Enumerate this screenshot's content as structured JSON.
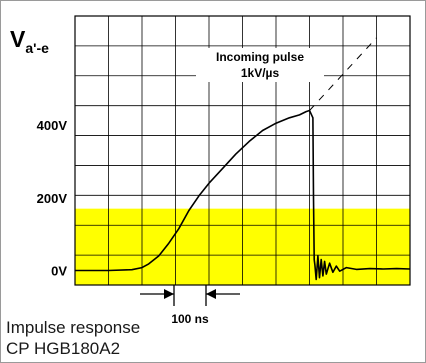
{
  "chart_data": {
    "type": "line",
    "ylabel": {
      "main": "V",
      "sub": "a'-e"
    },
    "ytick_labels": [
      "400V",
      "200V",
      "0V"
    ],
    "ytick_values": [
      400,
      200,
      0
    ],
    "ylim": [
      -40,
      700
    ],
    "xlim": [
      0,
      1
    ],
    "grid": true,
    "highlight_band": {
      "from": -40,
      "to": 170,
      "color": "#ffff00"
    },
    "annotation": {
      "line1": "Incoming pulse",
      "line2": "1kV/µs"
    },
    "scale_marker": {
      "label": "100 ns"
    },
    "series": [
      {
        "points": [
          [
            0.0,
            0
          ],
          [
            0.1,
            0
          ],
          [
            0.17,
            2
          ],
          [
            0.2,
            8
          ],
          [
            0.22,
            18
          ],
          [
            0.25,
            40
          ],
          [
            0.28,
            75
          ],
          [
            0.31,
            115
          ],
          [
            0.34,
            165
          ],
          [
            0.37,
            205
          ],
          [
            0.4,
            240
          ],
          [
            0.44,
            280
          ],
          [
            0.48,
            320
          ],
          [
            0.52,
            355
          ],
          [
            0.56,
            385
          ],
          [
            0.6,
            405
          ],
          [
            0.64,
            420
          ],
          [
            0.67,
            428
          ],
          [
            0.69,
            437
          ],
          [
            0.7,
            440
          ],
          [
            0.71,
            420
          ],
          [
            0.712,
            200
          ],
          [
            0.714,
            30
          ],
          [
            0.716,
            15
          ],
          [
            0.72,
            -25
          ],
          [
            0.725,
            40
          ],
          [
            0.73,
            -20
          ],
          [
            0.735,
            30
          ],
          [
            0.74,
            -15
          ],
          [
            0.745,
            25
          ],
          [
            0.75,
            -10
          ],
          [
            0.76,
            20
          ],
          [
            0.77,
            -5
          ],
          [
            0.78,
            12
          ],
          [
            0.79,
            -2
          ],
          [
            0.81,
            8
          ],
          [
            0.84,
            3
          ],
          [
            0.88,
            5
          ],
          [
            0.92,
            4
          ],
          [
            0.96,
            5
          ],
          [
            1.0,
            4
          ]
        ]
      },
      {
        "points": [
          [
            0.7,
            440
          ],
          [
            0.9,
            640
          ]
        ],
        "style": "dashed"
      }
    ]
  },
  "caption": {
    "line1": "Impulse response",
    "line2": "CP HGB180A2"
  }
}
